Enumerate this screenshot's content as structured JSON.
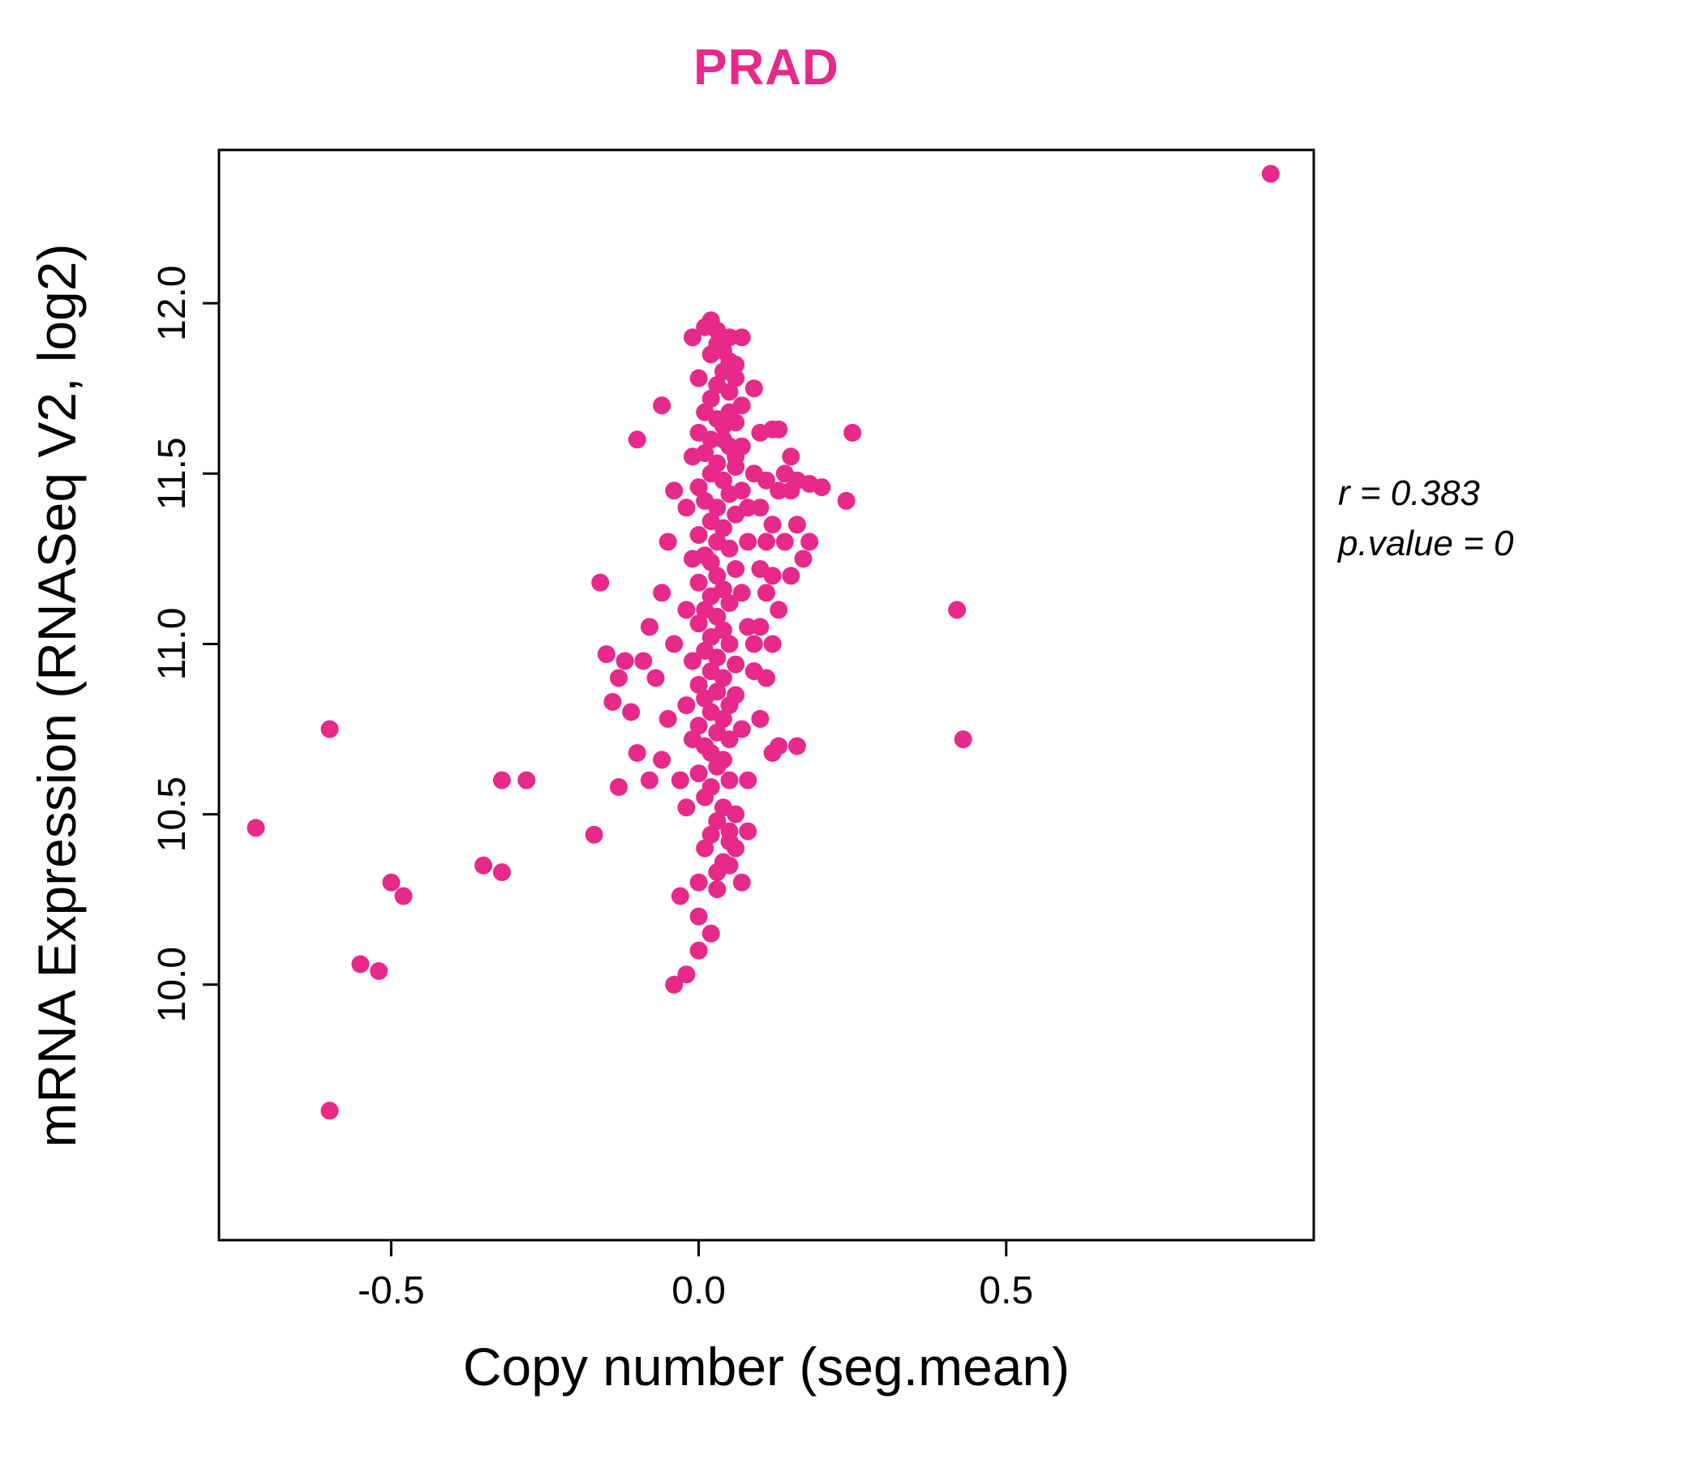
{
  "accent_color": "#e7298a",
  "chart_data": {
    "type": "scatter",
    "title": "PRAD",
    "xlabel": "Copy number (seg.mean)",
    "ylabel": "mRNA Expression (RNASeq V2, log2)",
    "xlim": [
      -0.78,
      1.0
    ],
    "ylim": [
      9.25,
      12.45
    ],
    "xticks": [
      -0.5,
      0.0,
      0.5
    ],
    "yticks": [
      10.0,
      10.5,
      11.0,
      11.5,
      12.0
    ],
    "grid": false,
    "legend": "none",
    "point_color": "#e7298a",
    "annotations": [
      "r = 0.383",
      "p.value = 0"
    ],
    "points": [
      [
        0.93,
        12.38
      ],
      [
        -0.72,
        10.46
      ],
      [
        -0.6,
        9.63
      ],
      [
        -0.6,
        10.75
      ],
      [
        -0.55,
        10.06
      ],
      [
        -0.52,
        10.04
      ],
      [
        -0.5,
        10.3
      ],
      [
        -0.48,
        10.26
      ],
      [
        -0.35,
        10.35
      ],
      [
        -0.32,
        10.33
      ],
      [
        -0.32,
        10.6
      ],
      [
        -0.28,
        10.6
      ],
      [
        0.42,
        11.1
      ],
      [
        0.43,
        10.72
      ],
      [
        0.25,
        11.62
      ],
      [
        0.24,
        11.42
      ],
      [
        0.2,
        11.46
      ],
      [
        -0.16,
        11.18
      ],
      [
        -0.17,
        10.44
      ],
      [
        -0.13,
        10.58
      ],
      [
        -0.15,
        10.97
      ],
      [
        -0.14,
        10.83
      ],
      [
        -0.04,
        10.0
      ],
      [
        -0.02,
        10.03
      ],
      [
        0.0,
        10.1
      ],
      [
        -0.03,
        10.26
      ],
      [
        0.03,
        10.28
      ],
      [
        0.02,
        10.15
      ],
      [
        -0.12,
        10.95
      ],
      [
        -0.13,
        10.9
      ],
      [
        -0.11,
        10.8
      ],
      [
        -0.1,
        10.68
      ],
      [
        -0.09,
        10.95
      ],
      [
        -0.08,
        11.05
      ],
      [
        -0.08,
        10.6
      ],
      [
        -0.1,
        11.6
      ],
      [
        -0.06,
        11.7
      ],
      [
        -0.07,
        10.9
      ],
      [
        -0.06,
        11.15
      ],
      [
        -0.06,
        10.66
      ],
      [
        -0.05,
        11.3
      ],
      [
        -0.05,
        10.78
      ],
      [
        -0.04,
        11.45
      ],
      [
        -0.04,
        11.0
      ],
      [
        -0.03,
        10.6
      ],
      [
        -0.02,
        11.4
      ],
      [
        -0.02,
        11.1
      ],
      [
        -0.02,
        10.82
      ],
      [
        -0.02,
        10.52
      ],
      [
        -0.01,
        11.55
      ],
      [
        -0.01,
        11.25
      ],
      [
        -0.01,
        10.95
      ],
      [
        -0.01,
        10.72
      ],
      [
        -0.01,
        11.9
      ],
      [
        0.02,
        11.95
      ],
      [
        0.01,
        11.93
      ],
      [
        0.03,
        11.88
      ],
      [
        0.02,
        11.85
      ],
      [
        0.05,
        11.83
      ],
      [
        0.04,
        11.8
      ],
      [
        0.06,
        11.82
      ],
      [
        0.0,
        11.78
      ],
      [
        0.03,
        11.76
      ],
      [
        0.05,
        11.74
      ],
      [
        0.02,
        11.72
      ],
      [
        0.07,
        11.7
      ],
      [
        0.01,
        11.68
      ],
      [
        0.03,
        11.66
      ],
      [
        0.04,
        11.64
      ],
      [
        0.0,
        11.62
      ],
      [
        0.02,
        11.6
      ],
      [
        0.05,
        11.58
      ],
      [
        0.01,
        11.56
      ],
      [
        0.06,
        11.55
      ],
      [
        0.03,
        11.53
      ],
      [
        0.02,
        11.5
      ],
      [
        0.04,
        11.48
      ],
      [
        0.0,
        11.46
      ],
      [
        0.05,
        11.44
      ],
      [
        0.01,
        11.42
      ],
      [
        0.03,
        11.4
      ],
      [
        0.06,
        11.38
      ],
      [
        0.02,
        11.36
      ],
      [
        0.04,
        11.34
      ],
      [
        0.0,
        11.32
      ],
      [
        0.03,
        11.3
      ],
      [
        0.05,
        11.28
      ],
      [
        0.01,
        11.26
      ],
      [
        0.02,
        11.24
      ],
      [
        0.06,
        11.22
      ],
      [
        0.03,
        11.2
      ],
      [
        0.0,
        11.18
      ],
      [
        0.04,
        11.16
      ],
      [
        0.02,
        11.14
      ],
      [
        0.05,
        11.12
      ],
      [
        0.01,
        11.1
      ],
      [
        0.03,
        11.08
      ],
      [
        0.0,
        11.06
      ],
      [
        0.04,
        11.04
      ],
      [
        0.02,
        11.02
      ],
      [
        0.05,
        11.0
      ],
      [
        0.01,
        10.98
      ],
      [
        0.03,
        10.96
      ],
      [
        0.06,
        10.94
      ],
      [
        0.02,
        10.92
      ],
      [
        0.04,
        10.9
      ],
      [
        0.0,
        10.88
      ],
      [
        0.03,
        10.86
      ],
      [
        0.01,
        10.84
      ],
      [
        0.05,
        10.82
      ],
      [
        0.02,
        10.8
      ],
      [
        0.04,
        10.78
      ],
      [
        0.0,
        10.76
      ],
      [
        0.03,
        10.74
      ],
      [
        0.05,
        10.72
      ],
      [
        0.01,
        10.7
      ],
      [
        0.02,
        10.68
      ],
      [
        0.04,
        10.66
      ],
      [
        0.03,
        10.64
      ],
      [
        0.0,
        10.62
      ],
      [
        0.05,
        10.6
      ],
      [
        0.02,
        10.58
      ],
      [
        0.01,
        10.55
      ],
      [
        0.04,
        10.52
      ],
      [
        0.03,
        10.48
      ],
      [
        0.02,
        10.44
      ],
      [
        0.05,
        10.42
      ],
      [
        0.01,
        10.4
      ],
      [
        0.04,
        10.36
      ],
      [
        0.03,
        10.33
      ],
      [
        0.0,
        10.3
      ],
      [
        0.07,
        11.9
      ],
      [
        0.06,
        11.65
      ],
      [
        0.07,
        11.45
      ],
      [
        0.08,
        11.3
      ],
      [
        0.07,
        11.15
      ],
      [
        0.08,
        11.05
      ],
      [
        0.06,
        10.85
      ],
      [
        0.07,
        10.75
      ],
      [
        0.08,
        10.6
      ],
      [
        0.06,
        10.5
      ],
      [
        0.09,
        11.75
      ],
      [
        0.1,
        11.62
      ],
      [
        0.11,
        11.48
      ],
      [
        0.12,
        11.35
      ],
      [
        0.1,
        11.22
      ],
      [
        0.13,
        11.1
      ],
      [
        0.09,
        11.0
      ],
      [
        0.11,
        10.9
      ],
      [
        0.1,
        10.78
      ],
      [
        0.12,
        10.68
      ],
      [
        0.14,
        11.3
      ],
      [
        0.15,
        11.2
      ],
      [
        0.16,
        11.35
      ],
      [
        0.17,
        11.25
      ],
      [
        0.13,
        10.7
      ],
      [
        0.09,
        10.92
      ],
      [
        0.1,
        11.05
      ],
      [
        0.11,
        11.3
      ],
      [
        0.12,
        11.2
      ],
      [
        0.13,
        11.45
      ],
      [
        0.14,
        11.5
      ],
      [
        0.15,
        11.55
      ],
      [
        0.16,
        11.48
      ],
      [
        0.18,
        11.3
      ],
      [
        0.04,
        11.6
      ],
      [
        0.05,
        11.68
      ],
      [
        0.06,
        11.52
      ],
      [
        0.07,
        11.58
      ],
      [
        0.08,
        11.4
      ],
      [
        0.09,
        11.5
      ],
      [
        0.1,
        11.4
      ],
      [
        0.11,
        11.15
      ],
      [
        0.12,
        11.0
      ],
      [
        0.05,
        10.35
      ],
      [
        0.06,
        10.4
      ],
      [
        0.08,
        10.45
      ],
      [
        0.0,
        10.2
      ],
      [
        0.05,
        11.9
      ],
      [
        0.04,
        11.86
      ],
      [
        0.03,
        11.92
      ],
      [
        0.06,
        11.78
      ],
      [
        0.18,
        11.47
      ],
      [
        0.15,
        11.45
      ],
      [
        0.13,
        11.63
      ],
      [
        0.12,
        11.63
      ],
      [
        0.16,
        10.7
      ],
      [
        0.07,
        10.3
      ],
      [
        0.05,
        10.45
      ]
    ]
  }
}
